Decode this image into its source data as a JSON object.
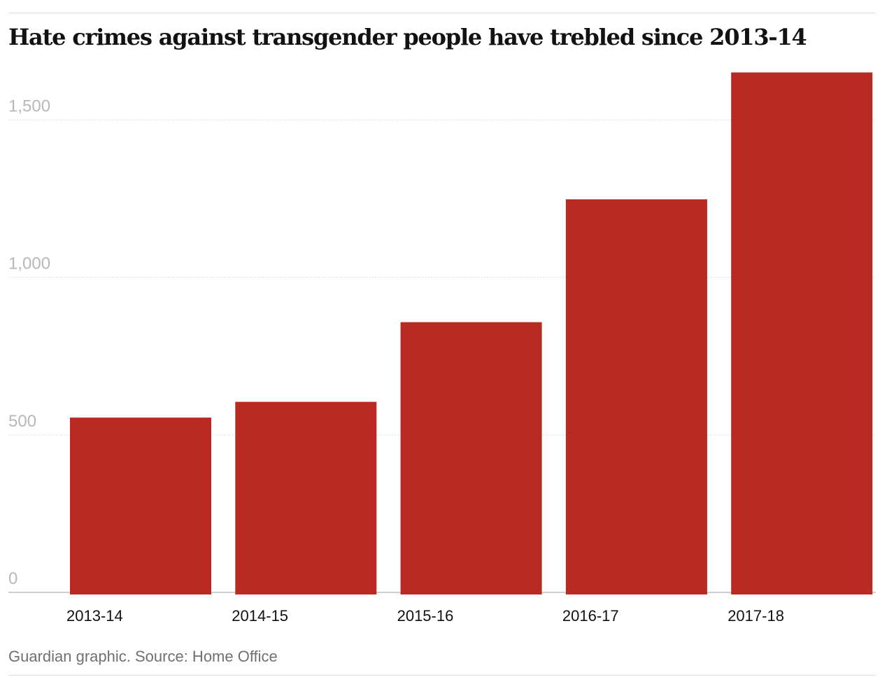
{
  "chart_data": {
    "type": "bar",
    "title": "Hate crimes against transgender people have trebled since 2013-14",
    "categories": [
      "2013-14",
      "2014-15",
      "2015-16",
      "2016-17",
      "2017-18"
    ],
    "values": [
      555,
      605,
      858,
      1248,
      1651
    ],
    "ylim": [
      0,
      1650
    ],
    "yticks": [
      0,
      500,
      1000,
      1500
    ],
    "ytick_labels": [
      "0",
      "500",
      "1,000",
      "1,500"
    ],
    "xlabel": "",
    "ylabel": "",
    "grid": "horizontal dotted",
    "bar_color": "#b92b22"
  },
  "footer": {
    "source": "Guardian graphic. Source: Home Office"
  }
}
